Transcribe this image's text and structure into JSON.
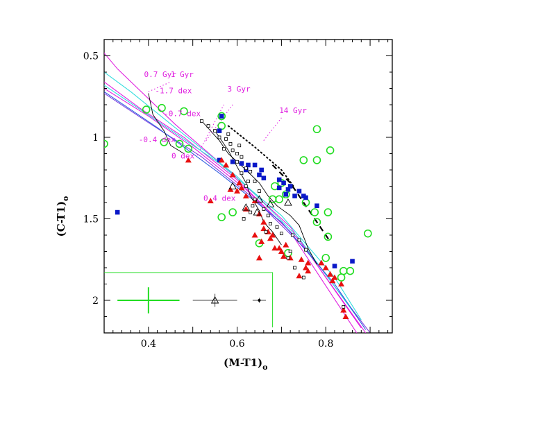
{
  "chart_data": {
    "type": "scatter",
    "xlabel": "(M-T1)",
    "xlabel_sub": "o",
    "ylabel": "(C-T1)",
    "ylabel_sub": "o",
    "xlim": [
      0.3,
      0.95
    ],
    "ylim": [
      2.2,
      0.4
    ],
    "y_inverted": true,
    "grid": false,
    "x_ticks": [
      {
        "value": 0.4,
        "label": "0.4"
      },
      {
        "value": 0.6,
        "label": "0.6"
      },
      {
        "value": 0.8,
        "label": "0.8"
      }
    ],
    "y_ticks": [
      {
        "value": 0.5,
        "label": "0.5"
      },
      {
        "value": 1.0,
        "label": "1"
      },
      {
        "value": 1.5,
        "label": "1.5"
      },
      {
        "value": 2.0,
        "label": "2"
      }
    ],
    "annotations": [
      {
        "text": "0.7 Gyr",
        "x": 0.39,
        "y": 0.63
      },
      {
        "text": "1 Gyr",
        "x": 0.45,
        "y": 0.63
      },
      {
        "text": "-1.7 dex",
        "x": 0.415,
        "y": 0.73
      },
      {
        "text": "3 Gyr",
        "x": 0.578,
        "y": 0.72
      },
      {
        "text": "-0.7 dex",
        "x": 0.435,
        "y": 0.87
      },
      {
        "text": "14 Gyr",
        "x": 0.695,
        "y": 0.85
      },
      {
        "text": "-0.4 dex",
        "x": 0.378,
        "y": 1.03
      },
      {
        "text": "0 dex",
        "x": 0.452,
        "y": 1.13
      },
      {
        "text": "0.4 dex",
        "x": 0.524,
        "y": 1.39
      }
    ],
    "colors": {
      "green_circles": "#22dd22",
      "blue_squares": "#0a18c8",
      "red_triangles": "#e81010",
      "magenta": "#e020e0",
      "cyan": "#33dddd"
    },
    "series": [
      {
        "marker": "green-open-circle",
        "points": [
          [
            0.395,
            0.83
          ],
          [
            0.43,
            0.82
          ],
          [
            0.48,
            0.84
          ],
          [
            0.565,
            0.87
          ],
          [
            0.565,
            0.93
          ],
          [
            0.435,
            1.03
          ],
          [
            0.47,
            1.04
          ],
          [
            0.3,
            1.04
          ],
          [
            0.49,
            1.07
          ],
          [
            0.78,
            0.95
          ],
          [
            0.75,
            1.14
          ],
          [
            0.81,
            1.08
          ],
          [
            0.78,
            1.14
          ],
          [
            0.7,
            1.28
          ],
          [
            0.685,
            1.3
          ],
          [
            0.71,
            1.35
          ],
          [
            0.68,
            1.38
          ],
          [
            0.695,
            1.38
          ],
          [
            0.755,
            1.4
          ],
          [
            0.775,
            1.46
          ],
          [
            0.805,
            1.46
          ],
          [
            0.78,
            1.52
          ],
          [
            0.895,
            1.59
          ],
          [
            0.805,
            1.61
          ],
          [
            0.84,
            1.82
          ],
          [
            0.855,
            1.82
          ],
          [
            0.8,
            1.74
          ],
          [
            0.835,
            1.86
          ],
          [
            0.565,
            1.49
          ],
          [
            0.59,
            1.46
          ],
          [
            0.65,
            1.65
          ],
          [
            0.715,
            1.71
          ]
        ]
      },
      {
        "marker": "blue-filled-square",
        "points": [
          [
            0.565,
            0.87
          ],
          [
            0.56,
            0.96
          ],
          [
            0.33,
            1.46
          ],
          [
            0.56,
            1.14
          ],
          [
            0.59,
            1.15
          ],
          [
            0.61,
            1.16
          ],
          [
            0.625,
            1.17
          ],
          [
            0.64,
            1.17
          ],
          [
            0.655,
            1.2
          ],
          [
            0.62,
            1.2
          ],
          [
            0.65,
            1.23
          ],
          [
            0.66,
            1.25
          ],
          [
            0.695,
            1.26
          ],
          [
            0.705,
            1.28
          ],
          [
            0.72,
            1.3
          ],
          [
            0.695,
            1.31
          ],
          [
            0.715,
            1.32
          ],
          [
            0.73,
            1.36
          ],
          [
            0.74,
            1.33
          ],
          [
            0.75,
            1.36
          ],
          [
            0.755,
            1.37
          ],
          [
            0.78,
            1.42
          ],
          [
            0.86,
            1.76
          ],
          [
            0.82,
            1.79
          ],
          [
            0.71,
            1.35
          ]
        ]
      },
      {
        "marker": "red-filled-triangle",
        "points": [
          [
            0.565,
            1.14
          ],
          [
            0.575,
            1.17
          ],
          [
            0.49,
            1.14
          ],
          [
            0.59,
            1.23
          ],
          [
            0.605,
            1.28
          ],
          [
            0.61,
            1.31
          ],
          [
            0.6,
            1.33
          ],
          [
            0.585,
            1.32
          ],
          [
            0.54,
            1.39
          ],
          [
            0.62,
            1.36
          ],
          [
            0.64,
            1.39
          ],
          [
            0.62,
            1.44
          ],
          [
            0.65,
            1.47
          ],
          [
            0.66,
            1.52
          ],
          [
            0.66,
            1.56
          ],
          [
            0.67,
            1.58
          ],
          [
            0.675,
            1.62
          ],
          [
            0.68,
            1.6
          ],
          [
            0.655,
            1.64
          ],
          [
            0.695,
            1.68
          ],
          [
            0.7,
            1.7
          ],
          [
            0.705,
            1.73
          ],
          [
            0.72,
            1.74
          ],
          [
            0.745,
            1.75
          ],
          [
            0.76,
            1.77
          ],
          [
            0.755,
            1.8
          ],
          [
            0.79,
            1.77
          ],
          [
            0.8,
            1.8
          ],
          [
            0.81,
            1.84
          ],
          [
            0.82,
            1.86
          ],
          [
            0.815,
            1.88
          ],
          [
            0.835,
            1.9
          ],
          [
            0.84,
            2.06
          ],
          [
            0.845,
            2.1
          ],
          [
            0.74,
            1.85
          ],
          [
            0.65,
            1.74
          ],
          [
            0.685,
            1.68
          ],
          [
            0.71,
            1.66
          ],
          [
            0.64,
            1.6
          ],
          [
            0.76,
            1.82
          ]
        ]
      },
      {
        "marker": "black-open-square",
        "points": [
          [
            0.56,
            1.0
          ],
          [
            0.575,
            1.01
          ],
          [
            0.585,
            1.04
          ],
          [
            0.57,
            1.07
          ],
          [
            0.59,
            1.08
          ],
          [
            0.6,
            1.1
          ],
          [
            0.61,
            1.12
          ],
          [
            0.6,
            1.15
          ],
          [
            0.62,
            1.19
          ],
          [
            0.63,
            1.21
          ],
          [
            0.61,
            1.22
          ],
          [
            0.64,
            1.27
          ],
          [
            0.625,
            1.27
          ],
          [
            0.62,
            1.3
          ],
          [
            0.65,
            1.33
          ],
          [
            0.64,
            1.38
          ],
          [
            0.635,
            1.42
          ],
          [
            0.63,
            1.46
          ],
          [
            0.615,
            1.5
          ],
          [
            0.66,
            1.44
          ],
          [
            0.67,
            1.48
          ],
          [
            0.675,
            1.53
          ],
          [
            0.665,
            1.58
          ],
          [
            0.69,
            1.55
          ],
          [
            0.7,
            1.59
          ],
          [
            0.725,
            1.6
          ],
          [
            0.74,
            1.63
          ],
          [
            0.72,
            1.7
          ],
          [
            0.755,
            1.69
          ],
          [
            0.715,
            1.74
          ],
          [
            0.73,
            1.8
          ],
          [
            0.75,
            1.86
          ],
          [
            0.84,
            2.04
          ],
          [
            0.52,
            0.9
          ],
          [
            0.535,
            0.93
          ],
          [
            0.55,
            0.96
          ],
          [
            0.58,
            0.98
          ],
          [
            0.605,
            1.05
          ]
        ]
      },
      {
        "marker": "black-open-triangle",
        "points": [
          [
            0.59,
            1.3
          ],
          [
            0.65,
            1.38
          ],
          [
            0.675,
            1.41
          ],
          [
            0.715,
            1.4
          ],
          [
            0.645,
            1.46
          ],
          [
            0.62,
            1.43
          ]
        ]
      }
    ],
    "isochrones": [
      {
        "color": "#e020e0",
        "points": [
          [
            0.29,
            0.45
          ],
          [
            0.33,
            0.58
          ],
          [
            0.46,
            0.92
          ],
          [
            0.58,
            1.2
          ],
          [
            0.72,
            1.55
          ],
          [
            0.88,
            2.17
          ]
        ]
      },
      {
        "color": "#e020e0",
        "points": [
          [
            0.3,
            0.66
          ],
          [
            0.38,
            0.82
          ],
          [
            0.48,
            1.0
          ],
          [
            0.6,
            1.26
          ],
          [
            0.72,
            1.58
          ],
          [
            0.87,
            2.2
          ]
        ]
      },
      {
        "color": "#e020e0",
        "points": [
          [
            0.3,
            0.7
          ],
          [
            0.4,
            0.87
          ],
          [
            0.5,
            1.06
          ],
          [
            0.62,
            1.32
          ],
          [
            0.74,
            1.63
          ],
          [
            0.89,
            2.2
          ]
        ]
      },
      {
        "color": "#8040e0",
        "points": [
          [
            0.3,
            0.73
          ],
          [
            0.4,
            0.91
          ],
          [
            0.52,
            1.12
          ],
          [
            0.64,
            1.38
          ],
          [
            0.76,
            1.7
          ],
          [
            0.9,
            2.2
          ]
        ]
      },
      {
        "color": "#33dddd",
        "points": [
          [
            0.3,
            0.6
          ],
          [
            0.36,
            0.72
          ],
          [
            0.46,
            0.94
          ],
          [
            0.6,
            1.24
          ],
          [
            0.74,
            1.62
          ],
          [
            0.87,
            2.1
          ]
        ]
      },
      {
        "color": "#33dddd",
        "points": [
          [
            0.3,
            0.68
          ],
          [
            0.42,
            0.9
          ],
          [
            0.56,
            1.16
          ],
          [
            0.7,
            1.48
          ],
          [
            0.82,
            1.86
          ],
          [
            0.88,
            2.12
          ]
        ]
      },
      {
        "color": "#3060e0",
        "points": [
          [
            0.3,
            0.72
          ],
          [
            0.42,
            0.94
          ],
          [
            0.56,
            1.22
          ],
          [
            0.7,
            1.52
          ],
          [
            0.82,
            1.9
          ],
          [
            0.89,
            2.18
          ]
        ]
      }
    ],
    "black_lines": [
      {
        "style": "solid",
        "points": [
          [
            0.52,
            0.9
          ],
          [
            0.56,
            1.02
          ],
          [
            0.58,
            1.1
          ],
          [
            0.62,
            1.2
          ],
          [
            0.65,
            1.28
          ],
          [
            0.67,
            1.36
          ],
          [
            0.69,
            1.42
          ],
          [
            0.72,
            1.48
          ],
          [
            0.74,
            1.54
          ],
          [
            0.76,
            1.68
          ],
          [
            0.78,
            1.78
          ]
        ]
      },
      {
        "style": "solid",
        "points": [
          [
            0.55,
            0.96
          ],
          [
            0.58,
            1.08
          ],
          [
            0.6,
            1.18
          ],
          [
            0.62,
            1.28
          ],
          [
            0.63,
            1.36
          ],
          [
            0.65,
            1.45
          ],
          [
            0.66,
            1.52
          ],
          [
            0.68,
            1.58
          ],
          [
            0.7,
            1.66
          ]
        ]
      },
      {
        "style": "solid",
        "points": [
          [
            0.4,
            0.73
          ],
          [
            0.41,
            0.86
          ],
          [
            0.435,
            0.96
          ],
          [
            0.45,
            1.05
          ],
          [
            0.48,
            1.1
          ]
        ]
      },
      {
        "style": "dotted",
        "points": [
          [
            0.58,
            0.93
          ],
          [
            0.64,
            1.06
          ],
          [
            0.7,
            1.2
          ],
          [
            0.73,
            1.31
          ]
        ]
      },
      {
        "style": "dashed",
        "points": [
          [
            0.68,
            1.17
          ],
          [
            0.72,
            1.28
          ],
          [
            0.75,
            1.4
          ],
          [
            0.78,
            1.52
          ],
          [
            0.81,
            1.64
          ]
        ]
      }
    ],
    "leader_lines": [
      {
        "points": [
          [
            0.4,
            0.72
          ],
          [
            0.45,
            0.66
          ]
        ]
      },
      {
        "points": [
          [
            0.51,
            1.11
          ],
          [
            0.57,
            0.8
          ]
        ]
      },
      {
        "points": [
          [
            0.53,
            1.02
          ],
          [
            0.59,
            0.8
          ]
        ]
      },
      {
        "points": [
          [
            0.66,
            1.02
          ],
          [
            0.7,
            0.88
          ]
        ]
      }
    ],
    "error_bars": [
      {
        "color": "#22dd22",
        "x": 0.4,
        "y": 2.0,
        "xerr": 0.07,
        "yerr": 0.08
      },
      {
        "color": "#444444",
        "x": 0.55,
        "y": 2.0,
        "xerr": 0.05,
        "yerr": 0.04
      },
      {
        "color": "#444444",
        "x": 0.65,
        "y": 2.0,
        "xerr": 0.015,
        "yerr": 0.015
      }
    ],
    "error_box": {
      "x0": 0.3,
      "x1": 0.68,
      "y0": 1.83,
      "y1": 2.2
    }
  }
}
